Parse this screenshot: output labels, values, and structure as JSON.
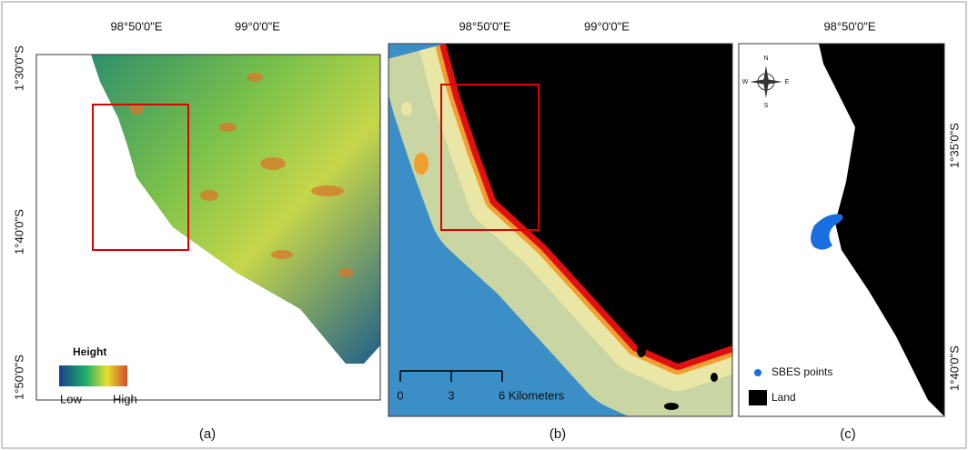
{
  "figure": {
    "panels": [
      {
        "caption": "(a)",
        "x_ticks": [
          "98°50'0\"E",
          "99°0'0\"E"
        ],
        "y_ticks": [
          "1°30'0\"S",
          "1°40'0\"S",
          "1°50'0\"S"
        ],
        "legend": {
          "title": "Height",
          "low": "Low",
          "high": "High"
        }
      },
      {
        "caption": "(b)",
        "x_ticks": [
          "98°50'0\"E",
          "99°0'0\"E"
        ],
        "scale_bar": [
          "0",
          "3",
          "6 Kilometers"
        ]
      },
      {
        "caption": "(c)",
        "x_ticks": [
          "98°50'0\"E"
        ],
        "y_ticks": [
          "1°35'0\"S",
          "1°40'0\"S"
        ],
        "compass": [
          "N",
          "S",
          "E",
          "W"
        ],
        "legend": [
          "SBES points",
          "Land"
        ]
      }
    ]
  }
}
